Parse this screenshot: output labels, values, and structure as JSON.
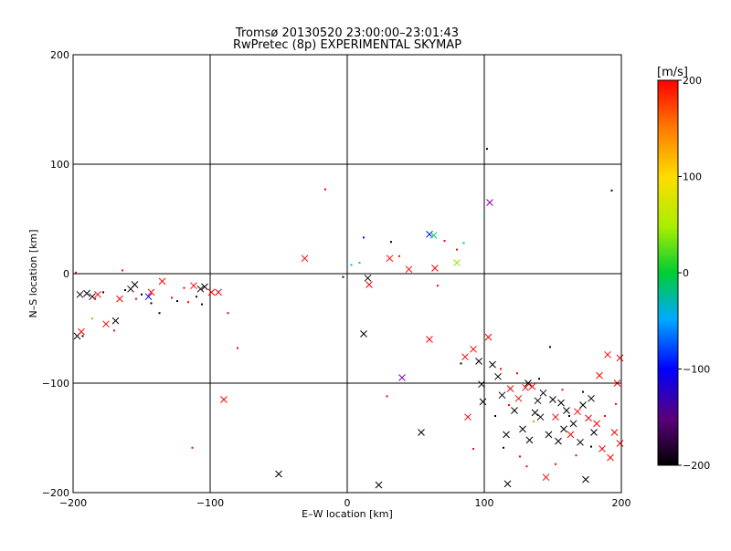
{
  "chart_data": {
    "type": "scatter",
    "title": "Tromsø 20130520 23:00:00–23:01:43",
    "subtitle": "RwPretec (8p) EXPERIMENTAL SKYMAP",
    "xlabel": "E–W location [km]",
    "ylabel": "N–S location [km]",
    "xlim": [
      -200,
      200
    ],
    "ylim": [
      -200,
      200
    ],
    "xticks": [
      -200,
      -100,
      0,
      100,
      200
    ],
    "yticks": [
      -200,
      -100,
      0,
      100,
      200
    ],
    "x_tick_labels": [
      "−200",
      "−100",
      "0",
      "100",
      "200"
    ],
    "y_tick_labels": [
      "−200",
      "−100",
      "0",
      "100",
      "200"
    ],
    "grid": true,
    "colorbar": {
      "label": "[m/s]",
      "range": [
        -200,
        200
      ],
      "ticks": [
        200,
        100,
        0,
        -100,
        -200
      ],
      "tick_labels": [
        "200",
        "100",
        "0",
        "−100",
        "−200"
      ]
    },
    "points": [
      {
        "x": -197,
        "y": -57,
        "m": "x",
        "c": "#000000"
      },
      {
        "x": -194,
        "y": -53,
        "m": "x",
        "c": "#ff0000"
      },
      {
        "x": -195,
        "y": -19,
        "m": "x",
        "c": "#000000"
      },
      {
        "x": -190,
        "y": -18,
        "m": "x",
        "c": "#000000"
      },
      {
        "x": -186,
        "y": -21,
        "m": "x",
        "c": "#000000"
      },
      {
        "x": -182,
        "y": -19,
        "m": "x",
        "c": "#ff0000"
      },
      {
        "x": -176,
        "y": -46,
        "m": "x",
        "c": "#ff0000"
      },
      {
        "x": -169,
        "y": -43,
        "m": "x",
        "c": "#000000"
      },
      {
        "x": -166,
        "y": -23,
        "m": "x",
        "c": "#ff0000"
      },
      {
        "x": -158,
        "y": -14,
        "m": "x",
        "c": "#000000"
      },
      {
        "x": -155,
        "y": -10,
        "m": "x",
        "c": "#000000"
      },
      {
        "x": -145,
        "y": -21,
        "m": "x",
        "c": "#0000ff"
      },
      {
        "x": -143,
        "y": -17,
        "m": "x",
        "c": "#ff0000"
      },
      {
        "x": -135,
        "y": -7,
        "m": "x",
        "c": "#ff0000"
      },
      {
        "x": -112,
        "y": -11,
        "m": "x",
        "c": "#ff0000"
      },
      {
        "x": -107,
        "y": -14,
        "m": "x",
        "c": "#000000"
      },
      {
        "x": -104,
        "y": -12,
        "m": "x",
        "c": "#000000"
      },
      {
        "x": -99,
        "y": -17,
        "m": "x",
        "c": "#ff0000"
      },
      {
        "x": -94,
        "y": -17,
        "m": "x",
        "c": "#ff0000"
      },
      {
        "x": -90,
        "y": -115,
        "m": "x",
        "c": "#ff0000"
      },
      {
        "x": -50,
        "y": -183,
        "m": "x",
        "c": "#000000"
      },
      {
        "x": -31,
        "y": 14,
        "m": "x",
        "c": "#ff0000"
      },
      {
        "x": 12,
        "y": -55,
        "m": "x",
        "c": "#000000"
      },
      {
        "x": 15,
        "y": -4,
        "m": "x",
        "c": "#000000"
      },
      {
        "x": 16,
        "y": -10,
        "m": "x",
        "c": "#ff0000"
      },
      {
        "x": 23,
        "y": -193,
        "m": "x",
        "c": "#000000"
      },
      {
        "x": 31,
        "y": 14,
        "m": "x",
        "c": "#ff0000"
      },
      {
        "x": 40,
        "y": -95,
        "m": "x",
        "c": "#8800aa"
      },
      {
        "x": 45,
        "y": 4,
        "m": "x",
        "c": "#ff0000"
      },
      {
        "x": 54,
        "y": -145,
        "m": "x",
        "c": "#000000"
      },
      {
        "x": 60,
        "y": -60,
        "m": "x",
        "c": "#ff0000"
      },
      {
        "x": 60,
        "y": 36,
        "m": "x",
        "c": "#0000ff"
      },
      {
        "x": 63,
        "y": 35,
        "m": "x",
        "c": "#00cc66"
      },
      {
        "x": 64,
        "y": 5,
        "m": "x",
        "c": "#ff0000"
      },
      {
        "x": 80,
        "y": 10,
        "m": "x",
        "c": "#88ee00"
      },
      {
        "x": 86,
        "y": -76,
        "m": "x",
        "c": "#ff0000"
      },
      {
        "x": 88,
        "y": -131,
        "m": "x",
        "c": "#ff0000"
      },
      {
        "x": 92,
        "y": -69,
        "m": "x",
        "c": "#ff0000"
      },
      {
        "x": 96,
        "y": -80,
        "m": "x",
        "c": "#000000"
      },
      {
        "x": 98,
        "y": -101,
        "m": "x",
        "c": "#000000"
      },
      {
        "x": 99,
        "y": -117,
        "m": "x",
        "c": "#000000"
      },
      {
        "x": 103,
        "y": -58,
        "m": "x",
        "c": "#ff0000"
      },
      {
        "x": 104,
        "y": 65,
        "m": "x",
        "c": "#8800aa"
      },
      {
        "x": 106,
        "y": -83,
        "m": "x",
        "c": "#000000"
      },
      {
        "x": 110,
        "y": -94,
        "m": "x",
        "c": "#000000"
      },
      {
        "x": 113,
        "y": -111,
        "m": "x",
        "c": "#000000"
      },
      {
        "x": 116,
        "y": -147,
        "m": "x",
        "c": "#000000"
      },
      {
        "x": 117,
        "y": -192,
        "m": "x",
        "c": "#000000"
      },
      {
        "x": 119,
        "y": -105,
        "m": "x",
        "c": "#ff0000"
      },
      {
        "x": 122,
        "y": -125,
        "m": "x",
        "c": "#000000"
      },
      {
        "x": 125,
        "y": -114,
        "m": "x",
        "c": "#ff0000"
      },
      {
        "x": 128,
        "y": -142,
        "m": "x",
        "c": "#000000"
      },
      {
        "x": 130,
        "y": -104,
        "m": "x",
        "c": "#ff0000"
      },
      {
        "x": 132,
        "y": -100,
        "m": "x",
        "c": "#000000"
      },
      {
        "x": 133,
        "y": -152,
        "m": "x",
        "c": "#000000"
      },
      {
        "x": 135,
        "y": -103,
        "m": "x",
        "c": "#ff0000"
      },
      {
        "x": 137,
        "y": -127,
        "m": "x",
        "c": "#000000"
      },
      {
        "x": 139,
        "y": -116,
        "m": "x",
        "c": "#000000"
      },
      {
        "x": 141,
        "y": -131,
        "m": "x",
        "c": "#000000"
      },
      {
        "x": 143,
        "y": -109,
        "m": "x",
        "c": "#000000"
      },
      {
        "x": 145,
        "y": -186,
        "m": "x",
        "c": "#ff0000"
      },
      {
        "x": 147,
        "y": -147,
        "m": "x",
        "c": "#000000"
      },
      {
        "x": 150,
        "y": -115,
        "m": "x",
        "c": "#000000"
      },
      {
        "x": 152,
        "y": -131,
        "m": "x",
        "c": "#ff0000"
      },
      {
        "x": 154,
        "y": -153,
        "m": "x",
        "c": "#000000"
      },
      {
        "x": 156,
        "y": -118,
        "m": "x",
        "c": "#000000"
      },
      {
        "x": 158,
        "y": -142,
        "m": "x",
        "c": "#000000"
      },
      {
        "x": 160,
        "y": -125,
        "m": "x",
        "c": "#000000"
      },
      {
        "x": 163,
        "y": -147,
        "m": "x",
        "c": "#ff0000"
      },
      {
        "x": 165,
        "y": -137,
        "m": "x",
        "c": "#000000"
      },
      {
        "x": 168,
        "y": -126,
        "m": "x",
        "c": "#ff0000"
      },
      {
        "x": 170,
        "y": -154,
        "m": "x",
        "c": "#000000"
      },
      {
        "x": 172,
        "y": -120,
        "m": "x",
        "c": "#000000"
      },
      {
        "x": 174,
        "y": -188,
        "m": "x",
        "c": "#000000"
      },
      {
        "x": 176,
        "y": -132,
        "m": "x",
        "c": "#ff0000"
      },
      {
        "x": 178,
        "y": -114,
        "m": "x",
        "c": "#000000"
      },
      {
        "x": 180,
        "y": -145,
        "m": "x",
        "c": "#000000"
      },
      {
        "x": 182,
        "y": -137,
        "m": "x",
        "c": "#ff0000"
      },
      {
        "x": 184,
        "y": -93,
        "m": "x",
        "c": "#ff0000"
      },
      {
        "x": 186,
        "y": -160,
        "m": "x",
        "c": "#ff0000"
      },
      {
        "x": 190,
        "y": -74,
        "m": "x",
        "c": "#ff0000"
      },
      {
        "x": 192,
        "y": -168,
        "m": "x",
        "c": "#ff0000"
      },
      {
        "x": 195,
        "y": -145,
        "m": "x",
        "c": "#ff0000"
      },
      {
        "x": 197,
        "y": -100,
        "m": "x",
        "c": "#ff0000"
      },
      {
        "x": 199,
        "y": -77,
        "m": "x",
        "c": "#ff0000"
      },
      {
        "x": 199,
        "y": -155,
        "m": "x",
        "c": "#ff0000"
      },
      {
        "x": -198,
        "y": 1,
        "m": "d",
        "c": "#ff0000"
      },
      {
        "x": -193,
        "y": -57,
        "m": "d",
        "c": "#000000"
      },
      {
        "x": -186,
        "y": -41,
        "m": "d",
        "c": "#ff8800"
      },
      {
        "x": -184,
        "y": -23,
        "m": "d",
        "c": "#ff0000"
      },
      {
        "x": -178,
        "y": -17,
        "m": "d",
        "c": "#000000"
      },
      {
        "x": -170,
        "y": -52,
        "m": "d",
        "c": "#ff0000"
      },
      {
        "x": -164,
        "y": 3,
        "m": "d",
        "c": "#ff0000"
      },
      {
        "x": -162,
        "y": -15,
        "m": "d",
        "c": "#000000"
      },
      {
        "x": -154,
        "y": -23,
        "m": "d",
        "c": "#ff0000"
      },
      {
        "x": -150,
        "y": -19,
        "m": "d",
        "c": "#000000"
      },
      {
        "x": -143,
        "y": -27,
        "m": "d",
        "c": "#000000"
      },
      {
        "x": -137,
        "y": -36,
        "m": "d",
        "c": "#000000"
      },
      {
        "x": -128,
        "y": -22,
        "m": "d",
        "c": "#ff0000"
      },
      {
        "x": -124,
        "y": -25,
        "m": "d",
        "c": "#000000"
      },
      {
        "x": -119,
        "y": -13,
        "m": "d",
        "c": "#ff0000"
      },
      {
        "x": -116,
        "y": -26,
        "m": "d",
        "c": "#ff0000"
      },
      {
        "x": -113,
        "y": -159,
        "m": "d",
        "c": "#ff0000"
      },
      {
        "x": -110,
        "y": -21,
        "m": "d",
        "c": "#000000"
      },
      {
        "x": -106,
        "y": -28,
        "m": "d",
        "c": "#000000"
      },
      {
        "x": -87,
        "y": -36,
        "m": "d",
        "c": "#ff0000"
      },
      {
        "x": -80,
        "y": -68,
        "m": "d",
        "c": "#ff0000"
      },
      {
        "x": -16,
        "y": 77,
        "m": "d",
        "c": "#ff0000"
      },
      {
        "x": -3,
        "y": -3,
        "m": "d",
        "c": "#000000"
      },
      {
        "x": 3,
        "y": 8,
        "m": "d",
        "c": "#00aaff"
      },
      {
        "x": 9,
        "y": 10,
        "m": "d",
        "c": "#00cc66"
      },
      {
        "x": 12,
        "y": 33,
        "m": "d",
        "c": "#0000ff"
      },
      {
        "x": 29,
        "y": -112,
        "m": "d",
        "c": "#ff0000"
      },
      {
        "x": 32,
        "y": 29,
        "m": "d",
        "c": "#000000"
      },
      {
        "x": 38,
        "y": 16,
        "m": "d",
        "c": "#ff0000"
      },
      {
        "x": 66,
        "y": -11,
        "m": "d",
        "c": "#ff0000"
      },
      {
        "x": 71,
        "y": 30,
        "m": "d",
        "c": "#ff0000"
      },
      {
        "x": 80,
        "y": 22,
        "m": "d",
        "c": "#ff0000"
      },
      {
        "x": 83,
        "y": -82,
        "m": "d",
        "c": "#000000"
      },
      {
        "x": 85,
        "y": 28,
        "m": "d",
        "c": "#00aaff"
      },
      {
        "x": 92,
        "y": -160,
        "m": "d",
        "c": "#ff0000"
      },
      {
        "x": 100,
        "y": 53,
        "m": "d",
        "c": "#00aaff"
      },
      {
        "x": 102,
        "y": 114,
        "m": "d",
        "c": "#000000"
      },
      {
        "x": 108,
        "y": -130,
        "m": "d",
        "c": "#000000"
      },
      {
        "x": 112,
        "y": -87,
        "m": "d",
        "c": "#ff0000"
      },
      {
        "x": 114,
        "y": -159,
        "m": "d",
        "c": "#000000"
      },
      {
        "x": 118,
        "y": -120,
        "m": "d",
        "c": "#ff0000"
      },
      {
        "x": 124,
        "y": -91,
        "m": "d",
        "c": "#ff0000"
      },
      {
        "x": 126,
        "y": -167,
        "m": "d",
        "c": "#ff0000"
      },
      {
        "x": 131,
        "y": -176,
        "m": "d",
        "c": "#ff0000"
      },
      {
        "x": 136,
        "y": -135,
        "m": "d",
        "c": "#ff8800"
      },
      {
        "x": 140,
        "y": -96,
        "m": "d",
        "c": "#000000"
      },
      {
        "x": 148,
        "y": -67,
        "m": "d",
        "c": "#000000"
      },
      {
        "x": 152,
        "y": -174,
        "m": "d",
        "c": "#ff0000"
      },
      {
        "x": 157,
        "y": -106,
        "m": "d",
        "c": "#ff0000"
      },
      {
        "x": 162,
        "y": -130,
        "m": "d",
        "c": "#000000"
      },
      {
        "x": 167,
        "y": -166,
        "m": "d",
        "c": "#ff0000"
      },
      {
        "x": 172,
        "y": -108,
        "m": "d",
        "c": "#000000"
      },
      {
        "x": 178,
        "y": -158,
        "m": "d",
        "c": "#000000"
      },
      {
        "x": 188,
        "y": -130,
        "m": "d",
        "c": "#ff0000"
      },
      {
        "x": 193,
        "y": 76,
        "m": "d",
        "c": "#000000"
      },
      {
        "x": 196,
        "y": -119,
        "m": "d",
        "c": "#ff0000"
      }
    ]
  }
}
